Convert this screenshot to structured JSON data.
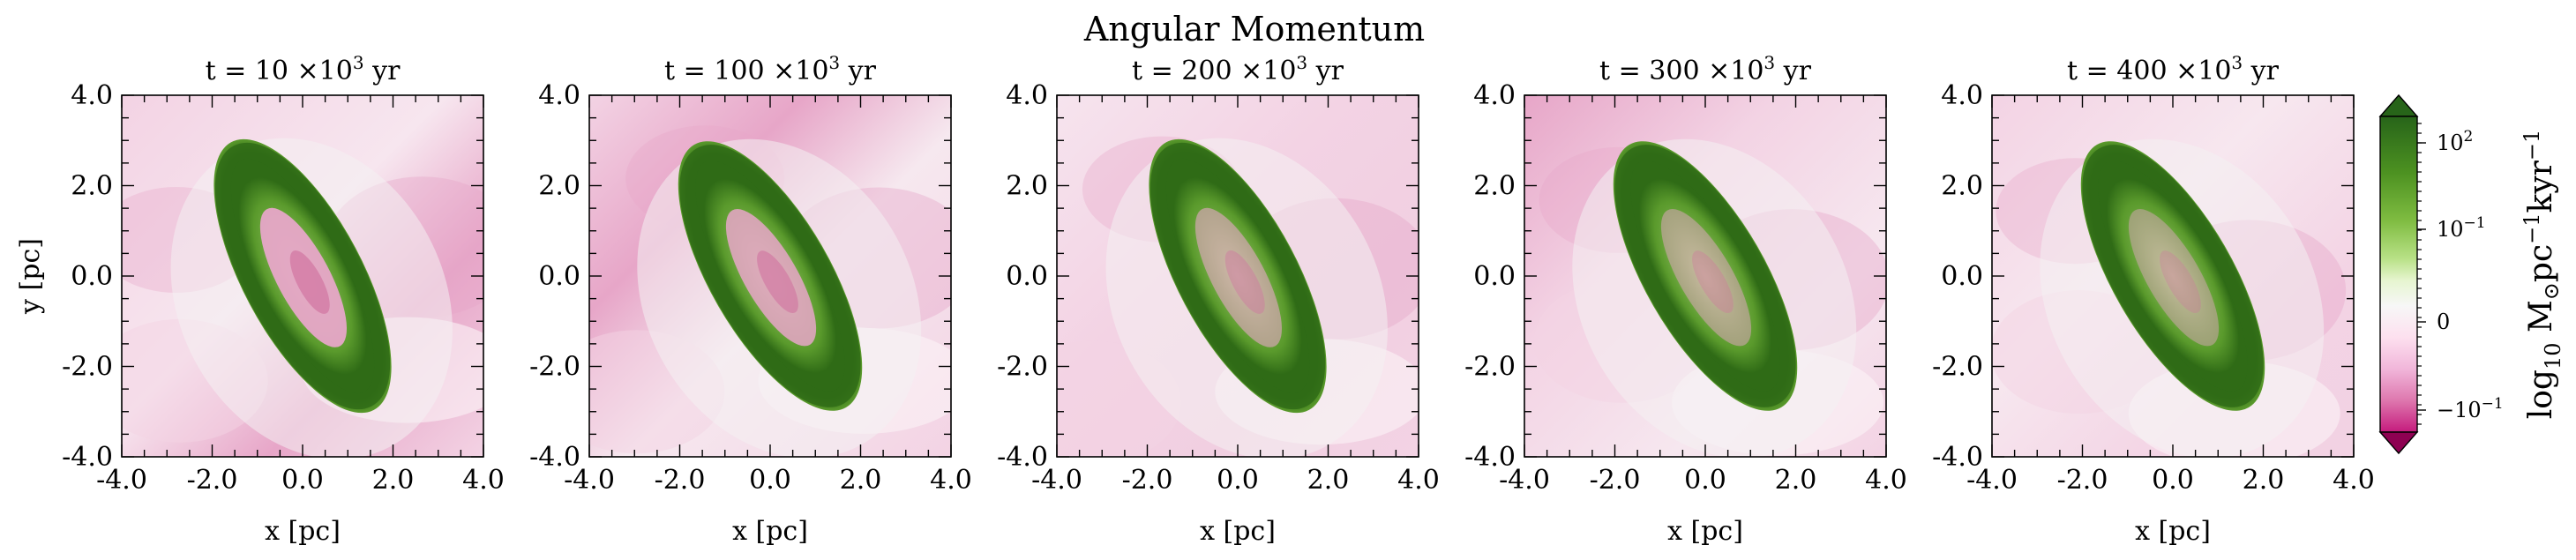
{
  "figure": {
    "title": "Angular Momentum"
  },
  "chart_data": {
    "type": "heatmap",
    "xlabel": "x [pc]",
    "ylabel": "y [pc]",
    "xlim": [
      -4.0,
      4.0
    ],
    "ylim": [
      -4.0,
      4.0
    ],
    "xticks": [
      -4.0,
      -2.0,
      0.0,
      2.0,
      4.0
    ],
    "yticks": [
      -4.0,
      -2.0,
      0.0,
      2.0,
      4.0
    ],
    "tick_labels": [
      "-4.0",
      "-2.0",
      "0.0",
      "2.0",
      "4.0"
    ],
    "panels": [
      {
        "title_prefix": "t = 10 ×10",
        "title_exp": "3",
        "title_suffix": " yr",
        "t_kyr": 10,
        "ring_tilt_deg": -28,
        "hole_contrast": 0.95,
        "bg_variant": 0
      },
      {
        "title_prefix": "t = 100 ×10",
        "title_exp": "3",
        "title_suffix": " yr",
        "t_kyr": 100,
        "ring_tilt_deg": -30,
        "hole_contrast": 0.85,
        "bg_variant": 1
      },
      {
        "title_prefix": "t = 200 ×10",
        "title_exp": "3",
        "title_suffix": " yr",
        "t_kyr": 200,
        "ring_tilt_deg": -28,
        "hole_contrast": 0.6,
        "bg_variant": 2
      },
      {
        "title_prefix": "t = 300 ×10",
        "title_exp": "3",
        "title_suffix": " yr",
        "t_kyr": 300,
        "ring_tilt_deg": -30,
        "hole_contrast": 0.5,
        "bg_variant": 3
      },
      {
        "title_prefix": "t = 400 ×10",
        "title_exp": "3",
        "title_suffix": " yr",
        "t_kyr": 400,
        "ring_tilt_deg": -30,
        "hole_contrast": 0.45,
        "bg_variant": 4
      }
    ],
    "colorbar": {
      "label_main": "log",
      "label_sub": "10",
      "label_rest": " M",
      "label_odot": "⊙",
      "label_units": "pc",
      "label_exp1": "−1",
      "label_units2": "kyr",
      "label_exp2": "−1",
      "ticks": [
        {
          "base": "10",
          "exp": "2",
          "value": 100
        },
        {
          "base": "10",
          "exp": "−1",
          "value": 0.1
        },
        {
          "base": "0",
          "exp": "",
          "value": 0
        },
        {
          "base": "−10",
          "exp": "−1",
          "value": -0.1
        }
      ],
      "extend": "both",
      "colormap": "PiYG"
    },
    "colors": {
      "ring_dark": "#2f6b16",
      "ring_mid": "#5a9a2c",
      "ring_light": "#a9d17a",
      "neutral": "#f4f1f2",
      "pink_light": "#f3d3e4",
      "pink_mid": "#e7a6c8",
      "magenta": "#8e0152"
    }
  }
}
